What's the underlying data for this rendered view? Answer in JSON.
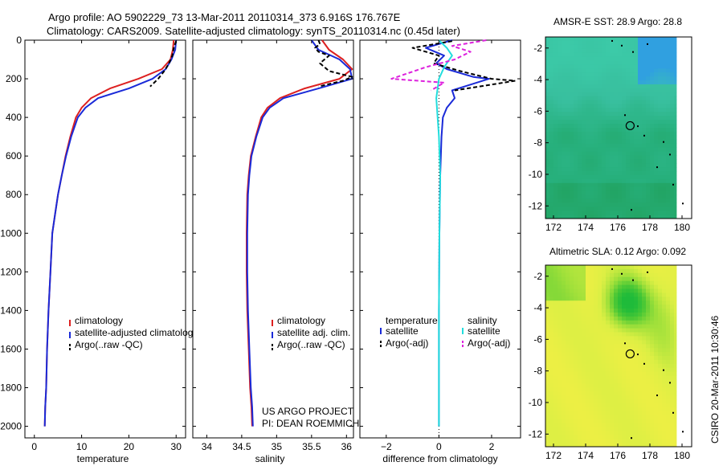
{
  "title_line1": "Argo profile: AO 5902229_73 13-Mar-2011 20110314_373 6.916S 176.767E",
  "title_line2": "Climatology: CARS2009. Satellite-adjusted climatology: synTS_20110314.nc (0.45d later)",
  "side_text": "CSIRO 20-Mar-2011 10:30:46",
  "colors": {
    "climatology": "#dd2020",
    "satellite": "#1a2ad8",
    "argo": "#000000",
    "sat_salinity": "#22dddd",
    "argo_salinity": "#dd22dd"
  },
  "chart_data": [
    {
      "type": "line",
      "name": "temperature",
      "xlabel": "temperature",
      "xlim": [
        -2,
        32
      ],
      "ylim": [
        2060,
        0
      ],
      "xticks": [
        0,
        10,
        20,
        30
      ],
      "xtick_labels": [
        "0",
        "10",
        "20",
        "30"
      ],
      "yticks": [
        0,
        200,
        400,
        600,
        800,
        1000,
        1200,
        1400,
        1600,
        1800,
        2000
      ],
      "ytick_labels": [
        "0",
        "200",
        "400",
        "600",
        "800",
        "1000",
        "1200",
        "1400",
        "1600",
        "1800",
        "2000"
      ],
      "legend": [
        "climatology",
        "satellite-adjusted climatology",
        "Argo(..raw -QC)"
      ],
      "series": [
        {
          "name": "climatology",
          "style": "solid",
          "x": [
            29.5,
            29.3,
            28.8,
            27.0,
            22.0,
            16.0,
            12.0,
            10.0,
            8.8,
            7.6,
            6.6,
            5.8,
            5.0,
            4.4,
            3.8,
            3.4,
            3.0,
            2.7,
            2.5,
            2.3,
            2.2
          ],
          "y": [
            0,
            50,
            100,
            150,
            200,
            250,
            300,
            350,
            400,
            500,
            600,
            700,
            800,
            900,
            1000,
            1200,
            1400,
            1600,
            1800,
            1900,
            2000
          ]
        },
        {
          "name": "satellite-adjusted climatology",
          "style": "solid",
          "x": [
            30.0,
            29.8,
            29.0,
            27.8,
            25.0,
            20.0,
            13.5,
            10.8,
            9.2,
            7.8,
            6.7,
            5.8,
            5.0,
            4.4,
            3.8,
            3.4,
            3.0,
            2.7,
            2.5,
            2.3,
            2.2
          ],
          "y": [
            0,
            50,
            100,
            150,
            200,
            250,
            300,
            350,
            400,
            500,
            600,
            700,
            800,
            900,
            1000,
            1200,
            1400,
            1600,
            1800,
            1900,
            2000
          ]
        },
        {
          "name": "Argo(..raw -QC)",
          "style": "dashed",
          "x": [
            30.0,
            29.5,
            29.2,
            28.5,
            27.5,
            26.2,
            24.5
          ],
          "y": [
            5,
            40,
            80,
            120,
            160,
            200,
            240
          ]
        }
      ]
    },
    {
      "type": "line",
      "name": "salinity",
      "xlabel": "salinity",
      "xlim": [
        33.8,
        36.1
      ],
      "ylim": [
        2060,
        0
      ],
      "xticks": [
        34,
        34.5,
        35,
        35.5,
        36
      ],
      "xtick_labels": [
        "34",
        "34.5",
        "35",
        "35.5",
        "36"
      ],
      "legend": [
        "climatology",
        "satellite adj. clim.",
        "Argo(..raw -QC)"
      ],
      "annotation": [
        "US ARGO PROJECT",
        "PI: DEAN ROEMMICH"
      ],
      "series": [
        {
          "name": "climatology",
          "style": "solid",
          "x": [
            35.65,
            35.75,
            35.95,
            36.08,
            35.9,
            35.4,
            35.05,
            34.87,
            34.78,
            34.7,
            34.63,
            34.6,
            34.58,
            34.57,
            34.57,
            34.58,
            34.6,
            34.62,
            34.64,
            34.65
          ],
          "y": [
            0,
            50,
            100,
            150,
            200,
            250,
            300,
            350,
            400,
            500,
            600,
            700,
            800,
            1000,
            1200,
            1400,
            1600,
            1800,
            1900,
            2000
          ]
        },
        {
          "name": "satellite adj. clim.",
          "style": "solid",
          "x": [
            35.5,
            35.6,
            35.9,
            36.05,
            36.08,
            35.6,
            35.1,
            34.9,
            34.8,
            34.71,
            34.64,
            34.61,
            34.59,
            34.58,
            34.58,
            34.59,
            34.61,
            34.63,
            34.65,
            34.66
          ],
          "y": [
            0,
            50,
            100,
            150,
            200,
            250,
            300,
            350,
            400,
            500,
            600,
            700,
            800,
            1000,
            1200,
            1400,
            1600,
            1800,
            1900,
            2000
          ]
        },
        {
          "name": "Argo(..raw -QC)",
          "style": "dashed",
          "x": [
            35.6,
            35.62,
            35.55,
            35.6,
            35.75,
            35.62,
            35.75,
            36.08,
            35.95,
            35.6
          ],
          "y": [
            0,
            20,
            40,
            60,
            80,
            120,
            160,
            190,
            210,
            240
          ]
        }
      ]
    },
    {
      "type": "line",
      "name": "difference from climatology",
      "xlabel": "difference from climatology",
      "xlim": [
        -3,
        3.1
      ],
      "ylim": [
        2060,
        0
      ],
      "xticks": [
        -2,
        0,
        2
      ],
      "xtick_labels": [
        "−2",
        "0",
        "2"
      ],
      "legend_left": {
        "heading": "temperature",
        "items": [
          "satellite",
          "Argo(-adj)"
        ]
      },
      "legend_right": {
        "heading": "salinity",
        "items": [
          "satellite",
          "Argo(-adj)"
        ]
      },
      "series": [
        {
          "name": "temperature satellite",
          "style": "solid",
          "x": [
            0.5,
            -0.5,
            0.2,
            -0.1,
            0.3,
            1.3,
            1.9,
            1.2,
            0.5,
            0.6,
            0.3,
            0.15,
            0.1,
            0.05,
            0.02,
            0.0,
            0.0,
            0.0
          ],
          "y": [
            0,
            40,
            80,
            120,
            150,
            190,
            200,
            230,
            260,
            300,
            350,
            400,
            500,
            700,
            1000,
            1400,
            1800,
            2000
          ]
        },
        {
          "name": "temperature Argo(-adj)",
          "style": "dashed",
          "x": [
            0.5,
            -1.0,
            0.0,
            -0.2,
            0.8,
            2.0,
            2.9,
            2.0,
            0.6
          ],
          "y": [
            5,
            40,
            80,
            120,
            160,
            200,
            210,
            230,
            260
          ]
        },
        {
          "name": "salinity satellite",
          "style": "solid",
          "x": [
            0.0,
            0.3,
            0.5,
            0.2,
            0.0,
            -0.1,
            0.0,
            0.05,
            0.02,
            0.0,
            0.0,
            0.0
          ],
          "y": [
            0,
            40,
            80,
            140,
            200,
            300,
            500,
            700,
            1000,
            1400,
            1800,
            2000
          ]
        },
        {
          "name": "salinity Argo(-adj)",
          "style": "dashed",
          "x": [
            1.8,
            0.5,
            1.2,
            0.6,
            -0.5,
            -1.8,
            0.2,
            -0.3
          ],
          "y": [
            0,
            30,
            60,
            100,
            140,
            200,
            220,
            260
          ]
        }
      ]
    },
    {
      "type": "heatmap",
      "name": "sst_map",
      "title": "AMSR-E SST: 28.9 Argo: 28.8",
      "xlim": [
        171.5,
        180.6
      ],
      "ylim": [
        -12.8,
        -1.3
      ],
      "xticks": [
        172,
        174,
        176,
        178,
        180
      ],
      "xtick_labels": [
        "172",
        "174",
        "176",
        "178",
        "180"
      ],
      "yticks": [
        -2,
        -4,
        -6,
        -8,
        -10,
        -12
      ],
      "ytick_labels": [
        "-2",
        "-4",
        "-6",
        "-8",
        "-10",
        "-12"
      ],
      "marker": {
        "lon": 176.77,
        "lat": -6.92
      },
      "colorscale": [
        "#1f9d55",
        "#27b07c",
        "#38bf9e",
        "#3ccaa8",
        "#30a0e0"
      ]
    },
    {
      "type": "heatmap",
      "name": "sla_map",
      "title": "Altimetric SLA: 0.12 Argo: 0.092",
      "xlim": [
        171.5,
        180.6
      ],
      "ylim": [
        -12.8,
        -1.3
      ],
      "xticks": [
        172,
        174,
        176,
        178,
        180
      ],
      "xtick_labels": [
        "172",
        "174",
        "176",
        "178",
        "180"
      ],
      "yticks": [
        -2,
        -4,
        -6,
        -8,
        -10,
        -12
      ],
      "ytick_labels": [
        "-2",
        "-4",
        "-6",
        "-8",
        "-10",
        "-12"
      ],
      "marker": {
        "lon": 176.77,
        "lat": -6.92
      },
      "colorscale": [
        "#f2ef44",
        "#dcef44",
        "#9fe03a",
        "#4ec935",
        "#1fbb3a"
      ]
    }
  ]
}
